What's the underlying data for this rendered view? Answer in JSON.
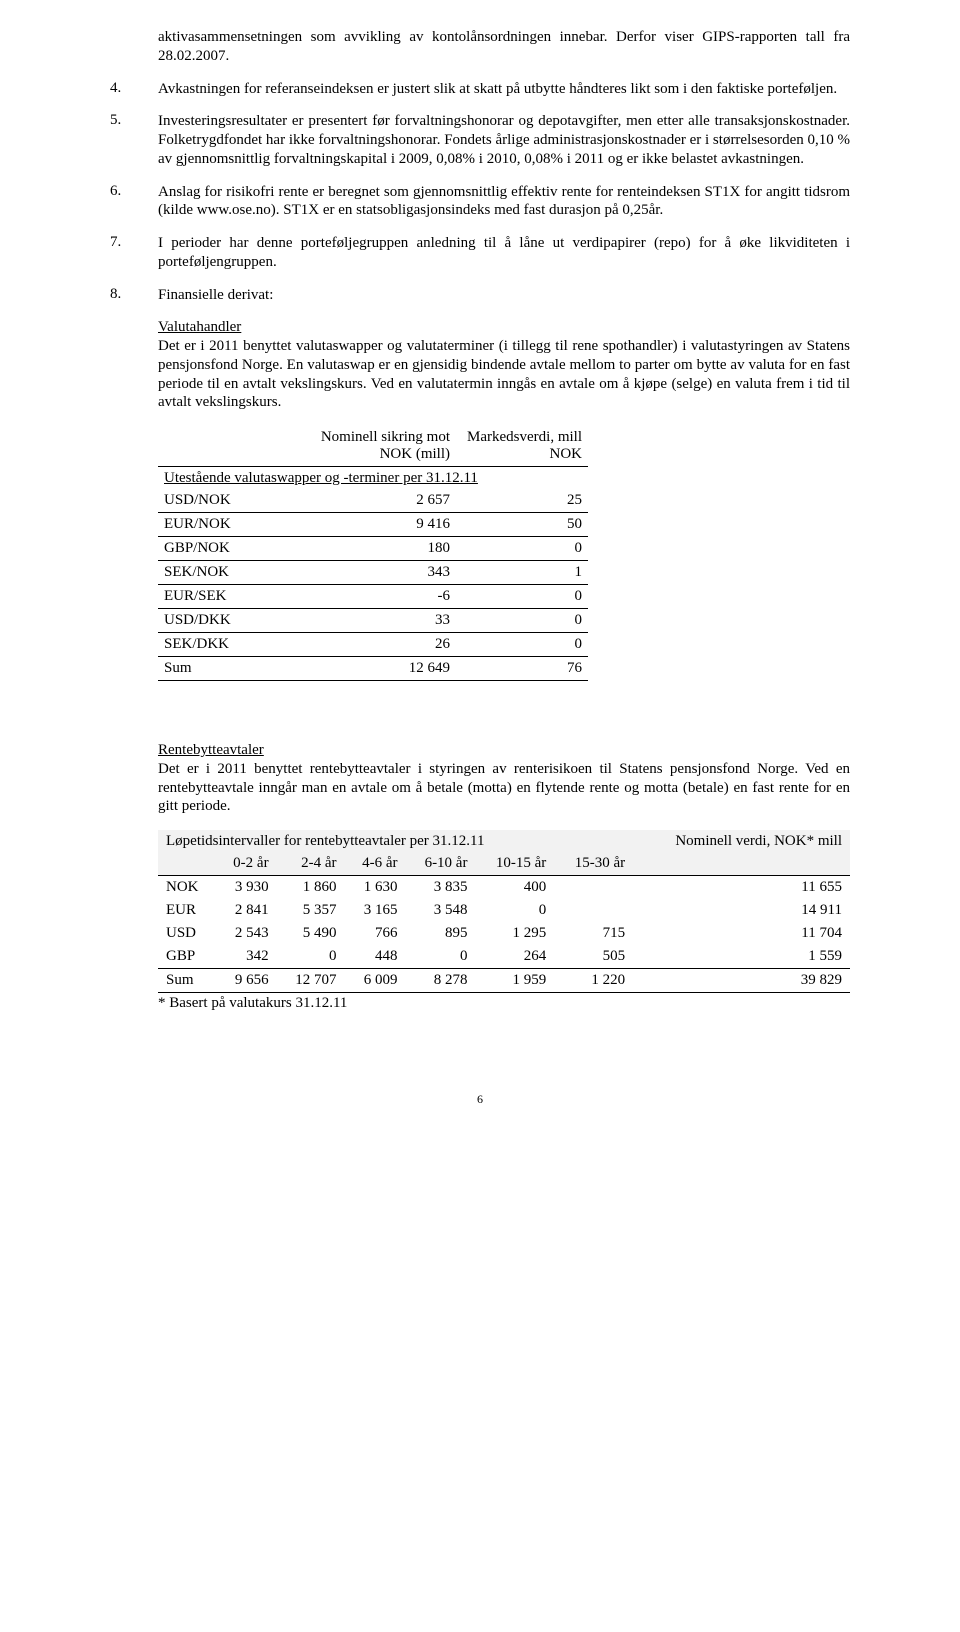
{
  "text": {
    "p0": "aktivasammensetningen som avvikling av kontolånsordningen innebar. Derfor viser GIPS-rapporten tall fra 28.02.2007.",
    "n4": "4.",
    "p4": "Avkastningen for referanseindeksen er justert slik at skatt på utbytte håndteres likt som i den faktiske porteføljen.",
    "n5": "5.",
    "p5": "Investeringsresultater er presentert før forvaltningshonorar og depotavgifter, men etter alle transaksjonskostnader. Folketrygdfondet har ikke forvaltningshonorar. Fondets årlige administrasjonskostnader er i størrelsesorden 0,10 % av gjennomsnittlig forvaltningskapital i 2009, 0,08% i 2010, 0,08% i 2011 og er ikke belastet avkastningen.",
    "n6": "6.",
    "p6": "Anslag for risikofri rente er beregnet som gjennomsnittlig effektiv rente for renteindeksen ST1X for angitt tidsrom (kilde www.ose.no). ST1X er en statsobligasjonsindeks med fast durasjon på 0,25år.",
    "n7": "7.",
    "p7": "I perioder har denne porteføljegruppen anledning til å låne ut verdipapirer (repo) for å øke likviditeten i porteføljengruppen.",
    "n8": "8.",
    "p8": "Finansielle derivat:",
    "valutahandler_h": "Valutahandler",
    "valutahandler_p": "Det er i 2011 benyttet valutaswapper og valutaterminer (i tillegg til rene spothandler) i valutastyringen av Statens pensjonsfond Norge. En valutaswap er en gjensidig bindende avtale mellom to parter om bytte av valuta for en fast periode til en avtalt vekslingskurs. Ved en valutatermin inngås en avtale om å kjøpe (selge) en valuta frem i tid til avtalt vekslingskurs.",
    "swaps_title": "Utestående valutaswapper og -terminer per 31.12.11",
    "rentebytte_h": "Rentebytteavtaler",
    "rentebytte_p": "Det er i 2011 benyttet rentebytteavtaler i styringen av renterisikoen til Statens pensjonsfond Norge. Ved en rentebytteavtale inngår man en avtale om å betale (motta) en flytende rente og motta (betale) en fast rente for en gitt periode.",
    "maturity_title": "Løpetidsintervaller for rentebytteavtaler per 31.12.11",
    "footnote": "* Basert på valutakurs 31.12.11",
    "page_num": "6"
  },
  "swaps": {
    "columns": [
      "",
      "Nominell sikring mot NOK (mill)",
      "Markedsverdi, mill NOK"
    ],
    "rows": [
      [
        "USD/NOK",
        "2 657",
        "25"
      ],
      [
        "EUR/NOK",
        "9 416",
        "50"
      ],
      [
        "GBP/NOK",
        "180",
        "0"
      ],
      [
        "SEK/NOK",
        "343",
        "1"
      ],
      [
        "EUR/SEK",
        "-6",
        "0"
      ],
      [
        "USD/DKK",
        "33",
        "0"
      ],
      [
        "SEK/DKK",
        "26",
        "0"
      ],
      [
        "Sum",
        "12 649",
        "76"
      ]
    ]
  },
  "maturity": {
    "nominal_header": "Nominell verdi, NOK* mill",
    "columns": [
      "",
      "0-2 år",
      "2-4 år",
      "4-6 år",
      "6-10 år",
      "10-15 år",
      "15-30 år"
    ],
    "rows": [
      [
        "NOK",
        "3 930",
        "1 860",
        "1 630",
        "3 835",
        "400",
        "",
        "11 655"
      ],
      [
        "EUR",
        "2 841",
        "5 357",
        "3 165",
        "3 548",
        "0",
        "",
        "14 911"
      ],
      [
        "USD",
        "2 543",
        "5 490",
        "766",
        "895",
        "1 295",
        "715",
        "11 704"
      ],
      [
        "GBP",
        "342",
        "0",
        "448",
        "0",
        "264",
        "505",
        "1 559"
      ],
      [
        "Sum",
        "9 656",
        "12 707",
        "6 009",
        "8 278",
        "1 959",
        "1 220",
        "39 829"
      ]
    ]
  }
}
